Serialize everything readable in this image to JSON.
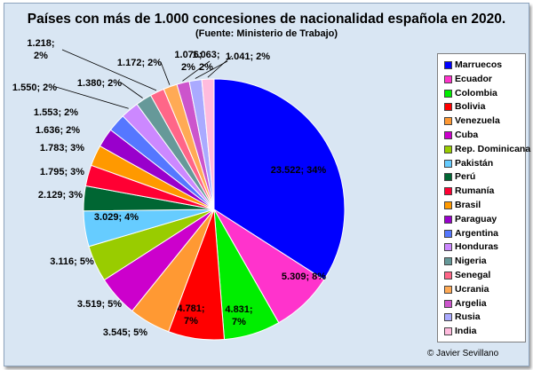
{
  "chart_data": {
    "type": "pie",
    "title": "Países con más de 1.000 concesiones de nacionalidad española en 2020.",
    "subtitle": "(Fuente: Ministerio de Trabajo)",
    "credit": "© Javier Sevillano",
    "legend_position": "right",
    "slices": [
      {
        "label": "Marruecos",
        "value": 23522,
        "data_label": "23.522; 34%",
        "color": "#0000ff"
      },
      {
        "label": "Ecuador",
        "value": 5309,
        "data_label": "5.309; 8%",
        "color": "#ff33cc"
      },
      {
        "label": "Colombia",
        "value": 4831,
        "data_label": "4.831; 7%",
        "color": "#00ee00"
      },
      {
        "label": "Bolivia",
        "value": 4781,
        "data_label": "4.781; 7%",
        "color": "#ff0000"
      },
      {
        "label": "Venezuela",
        "value": 3545,
        "data_label": "3.545; 5%",
        "color": "#ff9933"
      },
      {
        "label": "Cuba",
        "value": 3519,
        "data_label": "3.519; 5%",
        "color": "#cc00cc"
      },
      {
        "label": "Rep. Dominicana",
        "value": 3116,
        "data_label": "3.116; 5%",
        "color": "#99cc00"
      },
      {
        "label": "Pakistán",
        "value": 3029,
        "data_label": "3.029; 4%",
        "color": "#66ccff"
      },
      {
        "label": "Perú",
        "value": 2129,
        "data_label": "2.129; 3%",
        "color": "#006633"
      },
      {
        "label": "Rumanía",
        "value": 1795,
        "data_label": "1.795; 3%",
        "color": "#ff0033"
      },
      {
        "label": "Brasil",
        "value": 1783,
        "data_label": "1.783; 3%",
        "color": "#ff9900"
      },
      {
        "label": "Paraguay",
        "value": 1636,
        "data_label": "1.636; 2%",
        "color": "#9900cc"
      },
      {
        "label": "Argentina",
        "value": 1553,
        "data_label": "1.553; 2%",
        "color": "#5577ff"
      },
      {
        "label": "Honduras",
        "value": 1550,
        "data_label": "1.550; 2%",
        "color": "#cc88ff"
      },
      {
        "label": "Nigeria",
        "value": 1380,
        "data_label": "1.380; 2%",
        "color": "#669999"
      },
      {
        "label": "Senegal",
        "value": 1218,
        "data_label": "1.218; 2%",
        "color": "#ff6688"
      },
      {
        "label": "Ucrania",
        "value": 1172,
        "data_label": "1.172; 2%",
        "color": "#ffaa55"
      },
      {
        "label": "Argelia",
        "value": 1076,
        "data_label": "1.076; 2%",
        "color": "#cc55cc"
      },
      {
        "label": "Rusia",
        "value": 1063,
        "data_label": "1.063; 2%",
        "color": "#aaaaff"
      },
      {
        "label": "India",
        "value": 1041,
        "data_label": "1.041; 2%",
        "color": "#ffbbdd"
      }
    ]
  }
}
